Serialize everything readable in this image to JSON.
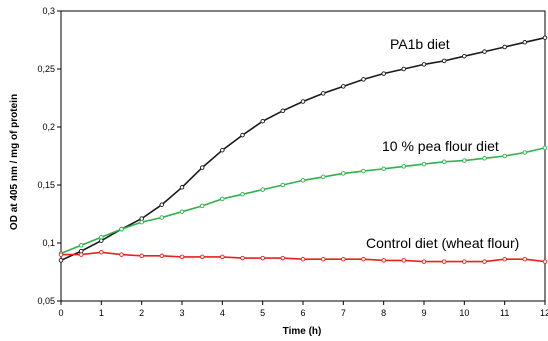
{
  "chart_data": {
    "type": "line",
    "xlabel": "Time (h)",
    "ylabel": "OD at 405 nm / mg of protein",
    "xlim": [
      0,
      12
    ],
    "ylim": [
      0.05,
      0.3
    ],
    "x_ticks": [
      "0",
      "1",
      "2",
      "3",
      "4",
      "5",
      "6",
      "7",
      "8",
      "9",
      "10",
      "11",
      "12"
    ],
    "y_ticks": [
      "0,05",
      "0,1",
      "0,15",
      "0,2",
      "0,25",
      "0,3"
    ],
    "grid": false,
    "annotations": [
      "PA1b diet",
      "10 % pea flour diet",
      "Control diet (wheat flour)"
    ],
    "series": [
      {
        "name": "PA1b diet",
        "color": "#1a1a1a",
        "marker": "open-circle",
        "x": [
          0,
          0.5,
          1,
          1.5,
          2,
          2.5,
          3,
          3.5,
          4,
          4.5,
          5,
          5.5,
          6,
          6.5,
          7,
          7.5,
          8,
          8.5,
          9,
          9.5,
          10,
          10.5,
          11,
          11.5,
          12
        ],
        "values": [
          0.085,
          0.093,
          0.102,
          0.112,
          0.121,
          0.133,
          0.148,
          0.165,
          0.18,
          0.193,
          0.205,
          0.214,
          0.222,
          0.229,
          0.235,
          0.241,
          0.246,
          0.25,
          0.254,
          0.257,
          0.261,
          0.265,
          0.269,
          0.273,
          0.277
        ]
      },
      {
        "name": "10 % pea flour diet",
        "color": "#2db34a",
        "marker": "open-circle",
        "x": [
          0,
          0.5,
          1,
          1.5,
          2,
          2.5,
          3,
          3.5,
          4,
          4.5,
          5,
          5.5,
          6,
          6.5,
          7,
          7.5,
          8,
          8.5,
          9,
          9.5,
          10,
          10.5,
          11,
          11.5,
          12
        ],
        "values": [
          0.091,
          0.098,
          0.105,
          0.112,
          0.118,
          0.122,
          0.127,
          0.132,
          0.138,
          0.142,
          0.146,
          0.15,
          0.154,
          0.157,
          0.16,
          0.162,
          0.164,
          0.166,
          0.168,
          0.17,
          0.171,
          0.173,
          0.175,
          0.178,
          0.182
        ]
      },
      {
        "name": "Control diet (wheat flour)",
        "color": "#e8221f",
        "marker": "open-circle",
        "x": [
          0,
          0.5,
          1,
          1.5,
          2,
          2.5,
          3,
          3.5,
          4,
          4.5,
          5,
          5.5,
          6,
          6.5,
          7,
          7.5,
          8,
          8.5,
          9,
          9.5,
          10,
          10.5,
          11,
          11.5,
          12
        ],
        "values": [
          0.09,
          0.09,
          0.092,
          0.09,
          0.089,
          0.089,
          0.088,
          0.088,
          0.088,
          0.087,
          0.087,
          0.087,
          0.086,
          0.086,
          0.086,
          0.086,
          0.085,
          0.085,
          0.084,
          0.084,
          0.084,
          0.084,
          0.086,
          0.086,
          0.084
        ]
      }
    ]
  }
}
